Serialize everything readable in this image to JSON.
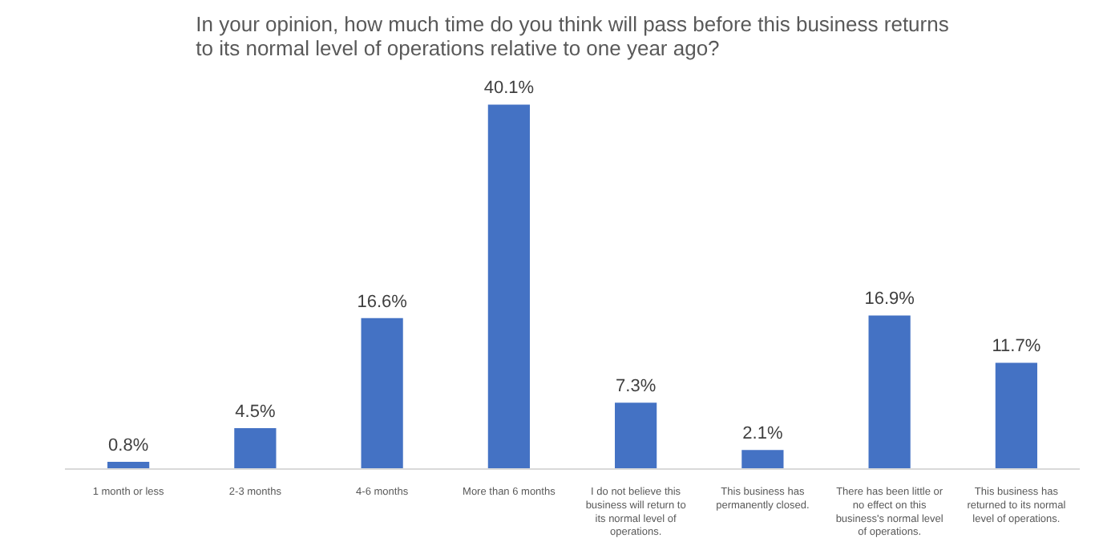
{
  "chart_data": {
    "type": "bar",
    "title": "In your opinion, how much time do you think will pass before this business returns to its normal level of operations relative to one year ago?",
    "categories": [
      "1 month or less",
      "2-3 months",
      "4-6 months",
      "More than 6 months",
      "I do not believe this business will return to its normal level of operations.",
      "This business has permanently closed.",
      "There has been little or no effect on this business's normal level of operations.",
      "This business has returned to its normal level of operations."
    ],
    "values": [
      0.8,
      4.5,
      16.6,
      40.1,
      7.3,
      2.1,
      16.9,
      11.7
    ],
    "value_labels": [
      "0.8%",
      "4.5%",
      "16.6%",
      "40.1%",
      "7.3%",
      "2.1%",
      "16.9%",
      "11.7%"
    ],
    "color": "#4472c4",
    "grid": false
  }
}
